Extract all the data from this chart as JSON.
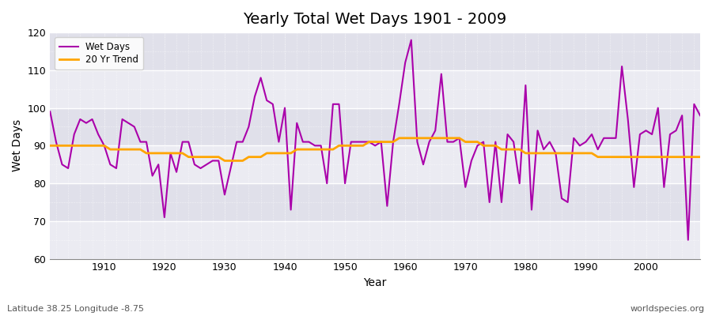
{
  "title": "Yearly Total Wet Days 1901 - 2009",
  "xlabel": "Year",
  "ylabel": "Wet Days",
  "subtitle_left": "Latitude 38.25 Longitude -8.75",
  "subtitle_right": "worldspecies.org",
  "ylim": [
    60,
    120
  ],
  "xlim": [
    1901,
    2009
  ],
  "yticks": [
    60,
    70,
    80,
    90,
    100,
    110,
    120
  ],
  "xticks": [
    1910,
    1920,
    1930,
    1940,
    1950,
    1960,
    1970,
    1980,
    1990,
    2000
  ],
  "wet_days_color": "#aa00aa",
  "trend_color": "#ffa500",
  "fig_bg": "#ffffff",
  "plot_bg": "#e8e8ee",
  "wet_days_years": [
    1901,
    1902,
    1903,
    1904,
    1905,
    1906,
    1907,
    1908,
    1909,
    1910,
    1911,
    1912,
    1913,
    1914,
    1915,
    1916,
    1917,
    1918,
    1919,
    1920,
    1921,
    1922,
    1923,
    1924,
    1925,
    1926,
    1927,
    1928,
    1929,
    1930,
    1931,
    1932,
    1933,
    1934,
    1935,
    1936,
    1937,
    1938,
    1939,
    1940,
    1941,
    1942,
    1943,
    1944,
    1945,
    1946,
    1947,
    1948,
    1949,
    1950,
    1951,
    1952,
    1953,
    1954,
    1955,
    1956,
    1957,
    1958,
    1959,
    1960,
    1961,
    1962,
    1963,
    1964,
    1965,
    1966,
    1967,
    1968,
    1969,
    1970,
    1971,
    1972,
    1973,
    1974,
    1975,
    1976,
    1977,
    1978,
    1979,
    1980,
    1981,
    1982,
    1983,
    1984,
    1985,
    1986,
    1987,
    1988,
    1989,
    1990,
    1991,
    1992,
    1993,
    1994,
    1995,
    1996,
    1997,
    1998,
    1999,
    2000,
    2001,
    2002,
    2003,
    2004,
    2005,
    2006,
    2007,
    2008,
    2009
  ],
  "wet_days_values": [
    99,
    91,
    85,
    84,
    93,
    97,
    96,
    97,
    93,
    90,
    85,
    84,
    97,
    96,
    95,
    91,
    91,
    82,
    85,
    71,
    88,
    83,
    91,
    91,
    85,
    84,
    85,
    86,
    86,
    77,
    84,
    91,
    91,
    95,
    103,
    108,
    102,
    101,
    91,
    100,
    73,
    96,
    91,
    91,
    90,
    90,
    80,
    101,
    101,
    80,
    91,
    91,
    91,
    91,
    90,
    91,
    74,
    91,
    101,
    112,
    118,
    91,
    85,
    91,
    94,
    109,
    91,
    91,
    92,
    79,
    86,
    90,
    91,
    75,
    91,
    75,
    93,
    91,
    80,
    106,
    73,
    94,
    89,
    91,
    88,
    76,
    75,
    92,
    90,
    91,
    93,
    89,
    92,
    92,
    92,
    111,
    97,
    79,
    93,
    94,
    93,
    100,
    79,
    93,
    94,
    98,
    65,
    101,
    98
  ],
  "trend_years": [
    1901,
    1902,
    1903,
    1904,
    1905,
    1906,
    1907,
    1908,
    1909,
    1910,
    1911,
    1912,
    1913,
    1914,
    1915,
    1916,
    1917,
    1918,
    1919,
    1920,
    1921,
    1922,
    1923,
    1924,
    1925,
    1926,
    1927,
    1928,
    1929,
    1930,
    1931,
    1932,
    1933,
    1934,
    1935,
    1936,
    1937,
    1938,
    1939,
    1940,
    1941,
    1942,
    1943,
    1944,
    1945,
    1946,
    1947,
    1948,
    1949,
    1950,
    1951,
    1952,
    1953,
    1954,
    1955,
    1956,
    1957,
    1958,
    1959,
    1960,
    1961,
    1962,
    1963,
    1964,
    1965,
    1966,
    1967,
    1968,
    1969,
    1970,
    1971,
    1972,
    1973,
    1974,
    1975,
    1976,
    1977,
    1978,
    1979,
    1980,
    1981,
    1982,
    1983,
    1984,
    1985,
    1986,
    1987,
    1988,
    1989,
    1990,
    1991,
    1992,
    1993,
    1994,
    1995,
    1996,
    1997,
    1998,
    1999,
    2000,
    2001,
    2002,
    2003,
    2004,
    2005,
    2006,
    2007,
    2008,
    2009
  ],
  "trend_values": [
    90,
    90,
    90,
    90,
    90,
    90,
    90,
    90,
    90,
    90,
    89,
    89,
    89,
    89,
    89,
    89,
    88,
    88,
    88,
    88,
    88,
    88,
    88,
    87,
    87,
    87,
    87,
    87,
    87,
    86,
    86,
    86,
    86,
    87,
    87,
    87,
    88,
    88,
    88,
    88,
    88,
    89,
    89,
    89,
    89,
    89,
    89,
    89,
    90,
    90,
    90,
    90,
    90,
    91,
    91,
    91,
    91,
    91,
    92,
    92,
    92,
    92,
    92,
    92,
    92,
    92,
    92,
    92,
    92,
    91,
    91,
    91,
    90,
    90,
    90,
    89,
    89,
    89,
    89,
    88,
    88,
    88,
    88,
    88,
    88,
    88,
    88,
    88,
    88,
    88,
    88,
    87,
    87,
    87,
    87,
    87,
    87,
    87,
    87,
    87,
    87,
    87,
    87,
    87,
    87,
    87,
    87,
    87,
    87
  ]
}
